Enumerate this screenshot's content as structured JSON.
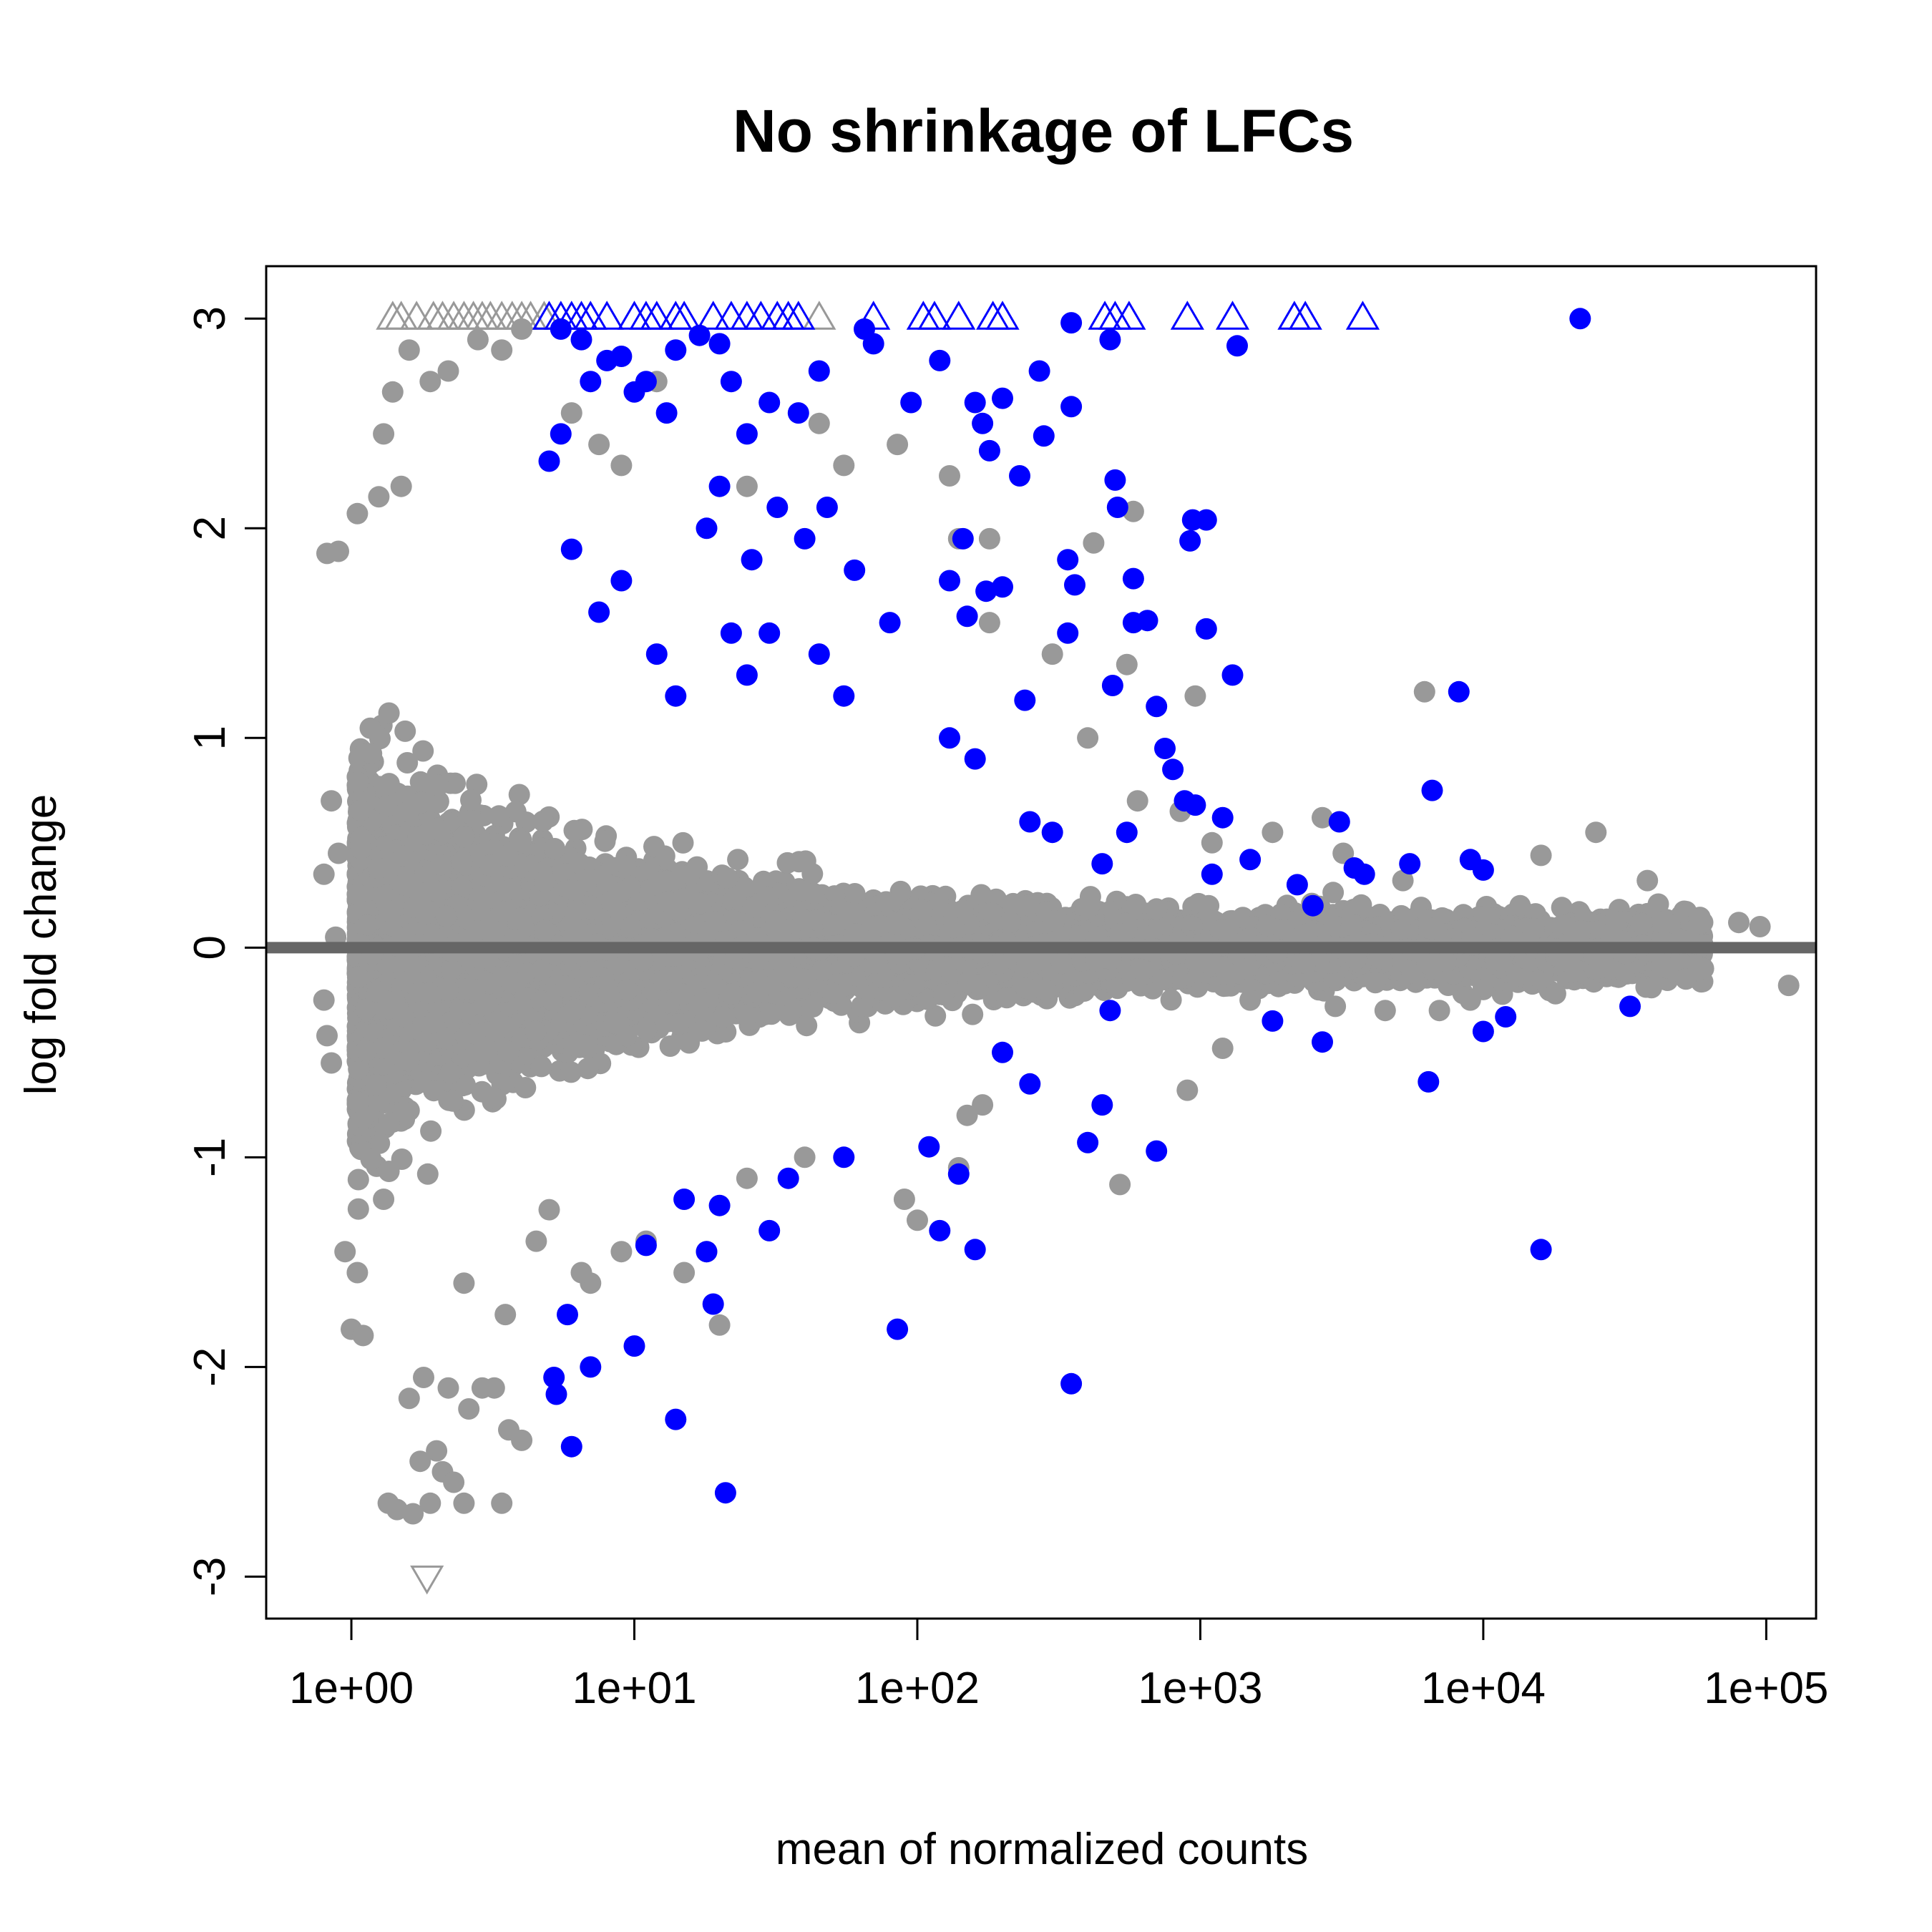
{
  "chart_data": {
    "type": "scatter",
    "title": "No shrinkage of LFCs",
    "xlabel": "mean of normalized counts",
    "ylabel": "log fold change",
    "x_scale": "log10",
    "xlim": [
      0.5,
      150000
    ],
    "ylim": [
      -3.2,
      3.25
    ],
    "x_ticks": [
      1,
      10,
      100,
      1000,
      10000,
      100000
    ],
    "x_tick_labels": [
      "1e+00",
      "1e+01",
      "1e+02",
      "1e+03",
      "1e+04",
      "1e+05"
    ],
    "y_ticks": [
      -3,
      -2,
      -1,
      0,
      1,
      2,
      3
    ],
    "y_tick_labels": [
      "-3",
      "-2",
      "-1",
      "0",
      "1",
      "2",
      "3"
    ],
    "reference_line": {
      "y": 0,
      "color": "#666666"
    },
    "colors": {
      "significant": "#0000ff",
      "not_significant": "#999999"
    },
    "clip_marker_note": "triangles mark points beyond the y range",
    "series": [
      {
        "significant": false,
        "color": "#999999",
        "points": [
          [
            0.82,
            1.88
          ],
          [
            0.9,
            1.89
          ],
          [
            1.05,
            2.07
          ],
          [
            0.85,
            0.7
          ],
          [
            0.9,
            0.45
          ],
          [
            0.8,
            0.35
          ],
          [
            0.88,
            0.05
          ],
          [
            0.8,
            -0.25
          ],
          [
            0.82,
            -0.42
          ],
          [
            0.85,
            -0.55
          ],
          [
            0.95,
            -1.45
          ],
          [
            1.0,
            -1.82
          ],
          [
            1.1,
            -1.85
          ],
          [
            1.05,
            -1.55
          ],
          [
            1.3,
            -1.2
          ],
          [
            1.35,
            -2.65
          ],
          [
            1.45,
            -2.68
          ],
          [
            1.65,
            -2.7
          ],
          [
            1.9,
            -2.65
          ],
          [
            2.1,
            -2.5
          ],
          [
            2.3,
            -2.55
          ],
          [
            2.5,
            -2.65
          ],
          [
            3.4,
            -2.65
          ],
          [
            1.75,
            -2.45
          ],
          [
            2.0,
            -2.4
          ],
          [
            1.6,
            -2.15
          ],
          [
            1.8,
            -2.05
          ],
          [
            2.2,
            -2.1
          ],
          [
            2.6,
            -2.2
          ],
          [
            2.9,
            -2.1
          ],
          [
            3.2,
            -2.1
          ],
          [
            3.6,
            -2.3
          ],
          [
            4.0,
            -2.35
          ],
          [
            1.3,
            2.45
          ],
          [
            1.4,
            2.65
          ],
          [
            1.6,
            2.85
          ],
          [
            1.9,
            2.7
          ],
          [
            2.2,
            2.75
          ],
          [
            2.8,
            2.9
          ],
          [
            3.4,
            2.85
          ],
          [
            4.0,
            2.95
          ],
          [
            1.25,
            2.15
          ],
          [
            1.5,
            2.2
          ],
          [
            6.0,
            2.55
          ],
          [
            7.5,
            2.4
          ],
          [
            9.0,
            2.3
          ],
          [
            12.0,
            2.7
          ],
          [
            25.0,
            2.2
          ],
          [
            45.0,
            2.5
          ],
          [
            55.0,
            2.3
          ],
          [
            85.0,
            2.4
          ],
          [
            130.0,
            2.25
          ],
          [
            140.0,
            1.95
          ],
          [
            180.0,
            1.55
          ],
          [
            180.0,
            1.95
          ],
          [
            300.0,
            1.4
          ],
          [
            420.0,
            1.93
          ],
          [
            580.0,
            2.08
          ],
          [
            550.0,
            1.35
          ],
          [
            960.0,
            1.2
          ],
          [
            400.0,
            1.0
          ],
          [
            600.0,
            0.7
          ],
          [
            850.0,
            0.65
          ],
          [
            1100.0,
            0.5
          ],
          [
            1800.0,
            0.55
          ],
          [
            2700.0,
            0.62
          ],
          [
            3200.0,
            0.45
          ],
          [
            5200.0,
            0.32
          ],
          [
            6200.0,
            1.22
          ],
          [
            16000.0,
            0.44
          ],
          [
            13500.0,
            0.2
          ],
          [
            22000.0,
            0.08
          ],
          [
            25000.0,
            0.55
          ],
          [
            38000.0,
            0.32
          ],
          [
            45000.0,
            0.02
          ],
          [
            80000.0,
            0.12
          ],
          [
            95000.0,
            0.1
          ],
          [
            60000.0,
            -0.1
          ],
          [
            52000.0,
            -0.15
          ],
          [
            120000.0,
            -0.18
          ],
          [
            28000.0,
            -0.1
          ],
          [
            18000.0,
            -0.22
          ],
          [
            10000.0,
            -0.2
          ],
          [
            9000.0,
            -0.25
          ],
          [
            7000.0,
            -0.3
          ],
          [
            4500.0,
            -0.3
          ],
          [
            3000.0,
            -0.28
          ],
          [
            1500.0,
            -0.25
          ],
          [
            1200.0,
            -0.48
          ],
          [
            900.0,
            -0.68
          ],
          [
            520.0,
            -1.13
          ],
          [
            170.0,
            -0.75
          ],
          [
            150.0,
            -0.8
          ],
          [
            140.0,
            -1.05
          ],
          [
            90.0,
            -1.2
          ],
          [
            100.0,
            -1.3
          ],
          [
            40.0,
            -1.0
          ],
          [
            25.0,
            -1.1
          ],
          [
            18.0,
            -1.45
          ],
          [
            20.0,
            -1.8
          ],
          [
            15.0,
            -1.55
          ],
          [
            11.0,
            -1.4
          ],
          [
            9.0,
            -1.45
          ],
          [
            7.0,
            -1.6
          ],
          [
            6.5,
            -1.55
          ],
          [
            2.5,
            -1.6
          ],
          [
            3.5,
            -1.75
          ],
          [
            4.5,
            -1.4
          ],
          [
            5.0,
            -1.25
          ]
        ],
        "clipped_up": [
          1.4,
          1.5,
          1.7,
          1.95,
          2.1,
          2.3,
          2.5,
          2.7,
          2.9,
          3.1,
          3.4,
          3.7,
          4.0,
          4.3,
          4.8,
          45.0
        ],
        "clipped_down": [
          1.85
        ]
      },
      {
        "significant": true,
        "color": "#0000ff",
        "points": [
          [
            22000.0,
            3.0
          ],
          [
            1350.0,
            2.87
          ],
          [
            480.0,
            2.9
          ],
          [
            350.0,
            2.98
          ],
          [
            65.0,
            2.95
          ],
          [
            70.0,
            2.88
          ],
          [
            120.0,
            2.8
          ],
          [
            95.0,
            2.6
          ],
          [
            160.0,
            2.6
          ],
          [
            200.0,
            2.62
          ],
          [
            270.0,
            2.75
          ],
          [
            280.0,
            2.44
          ],
          [
            350.0,
            2.58
          ],
          [
            170.0,
            2.5
          ],
          [
            180.0,
            2.37
          ],
          [
            230.0,
            2.25
          ],
          [
            500.0,
            2.23
          ],
          [
            510.0,
            2.1
          ],
          [
            940.0,
            2.04
          ],
          [
            920.0,
            1.94
          ],
          [
            1050.0,
            2.04
          ],
          [
            580.0,
            1.76
          ],
          [
            360.0,
            1.73
          ],
          [
            340.0,
            1.85
          ],
          [
            200.0,
            1.72
          ],
          [
            175.0,
            1.7
          ],
          [
            145.0,
            1.95
          ],
          [
            130.0,
            1.75
          ],
          [
            150.0,
            1.58
          ],
          [
            580.0,
            1.55
          ],
          [
            650.0,
            1.56
          ],
          [
            1050.0,
            1.52
          ],
          [
            340.0,
            1.5
          ],
          [
            80.0,
            1.55
          ],
          [
            55.0,
            1.2
          ],
          [
            45.0,
            1.4
          ],
          [
            30.0,
            1.5
          ],
          [
            22.0,
            1.5
          ],
          [
            25.0,
            1.3
          ],
          [
            12.0,
            1.4
          ],
          [
            14.0,
            1.2
          ],
          [
            130.0,
            1.0
          ],
          [
            160.0,
            0.9
          ],
          [
            240.0,
            1.18
          ],
          [
            490.0,
            1.25
          ],
          [
            700.0,
            1.15
          ],
          [
            1300.0,
            1.3
          ],
          [
            750.0,
            0.95
          ],
          [
            800.0,
            0.85
          ],
          [
            880.0,
            0.7
          ],
          [
            960.0,
            0.68
          ],
          [
            1200.0,
            0.62
          ],
          [
            250.0,
            0.6
          ],
          [
            300.0,
            0.55
          ],
          [
            450.0,
            0.4
          ],
          [
            550.0,
            0.55
          ],
          [
            1100.0,
            0.35
          ],
          [
            1500.0,
            0.42
          ],
          [
            2200.0,
            0.3
          ],
          [
            3100.0,
            0.6
          ],
          [
            3500.0,
            0.38
          ],
          [
            5500.0,
            0.4
          ],
          [
            8200.0,
            1.22
          ],
          [
            6600.0,
            0.75
          ],
          [
            9000.0,
            0.42
          ],
          [
            10000.0,
            0.37
          ],
          [
            3800.0,
            0.35
          ],
          [
            2500.0,
            0.2
          ],
          [
            6400.0,
            -0.64
          ],
          [
            12000.0,
            -0.33
          ],
          [
            10000.0,
            -0.4
          ],
          [
            33000.0,
            -0.28
          ],
          [
            16000.0,
            -1.44
          ],
          [
            2700.0,
            -0.45
          ],
          [
            1800.0,
            -0.35
          ],
          [
            450.0,
            -0.75
          ],
          [
            400.0,
            -0.93
          ],
          [
            480.0,
            -0.3
          ],
          [
            700.0,
            -0.97
          ],
          [
            350.0,
            -2.08
          ],
          [
            160.0,
            -1.44
          ],
          [
            120.0,
            -1.35
          ],
          [
            85.0,
            -1.82
          ],
          [
            110.0,
            -0.95
          ],
          [
            140.0,
            -1.08
          ],
          [
            250.0,
            -0.65
          ],
          [
            200.0,
            -0.5
          ],
          [
            55.0,
            -1.0
          ],
          [
            35.0,
            -1.1
          ],
          [
            30.0,
            -1.35
          ],
          [
            20.0,
            -1.23
          ],
          [
            18.0,
            -1.45
          ],
          [
            19.0,
            -1.7
          ],
          [
            15.0,
            -1.2
          ],
          [
            14.0,
            -2.25
          ],
          [
            11.0,
            -1.42
          ],
          [
            10.0,
            -1.9
          ],
          [
            7.0,
            -2.0
          ],
          [
            6.0,
            -2.38
          ],
          [
            5.8,
            -1.75
          ],
          [
            5.2,
            -2.05
          ],
          [
            5.3,
            -2.13
          ],
          [
            21.0,
            -2.6
          ],
          [
            5.0,
            2.32
          ],
          [
            5.5,
            2.95
          ],
          [
            5.5,
            2.45
          ],
          [
            6.5,
            2.9
          ],
          [
            7.0,
            2.7
          ],
          [
            8.0,
            2.8
          ],
          [
            9.0,
            2.82
          ],
          [
            10.0,
            2.65
          ],
          [
            11.0,
            2.7
          ],
          [
            13.0,
            2.55
          ],
          [
            14.0,
            2.85
          ],
          [
            17.0,
            2.92
          ],
          [
            20.0,
            2.88
          ],
          [
            22.0,
            2.7
          ],
          [
            25.0,
            2.45
          ],
          [
            30.0,
            2.6
          ],
          [
            38.0,
            2.55
          ],
          [
            45.0,
            2.75
          ],
          [
            18.0,
            2.0
          ],
          [
            20.0,
            2.2
          ],
          [
            26.0,
            1.85
          ],
          [
            32.0,
            2.1
          ],
          [
            40.0,
            1.95
          ],
          [
            48.0,
            2.1
          ],
          [
            60.0,
            1.8
          ],
          [
            6.0,
            1.9
          ],
          [
            7.5,
            1.6
          ],
          [
            9.0,
            1.75
          ]
        ],
        "clipped_up": [
          5.0,
          5.5,
          6.0,
          6.5,
          7.0,
          8.0,
          10.0,
          11.0,
          12.0,
          14.0,
          15.0,
          19.0,
          22.0,
          25.0,
          28.0,
          32.0,
          35.0,
          38.0,
          70.0,
          105.0,
          115.0,
          140.0,
          185.0,
          200.0,
          460.0,
          500.0,
          560.0,
          900.0,
          1300.0,
          2150.0,
          2350.0,
          3750.0
        ],
        "clipped_down": []
      }
    ]
  }
}
